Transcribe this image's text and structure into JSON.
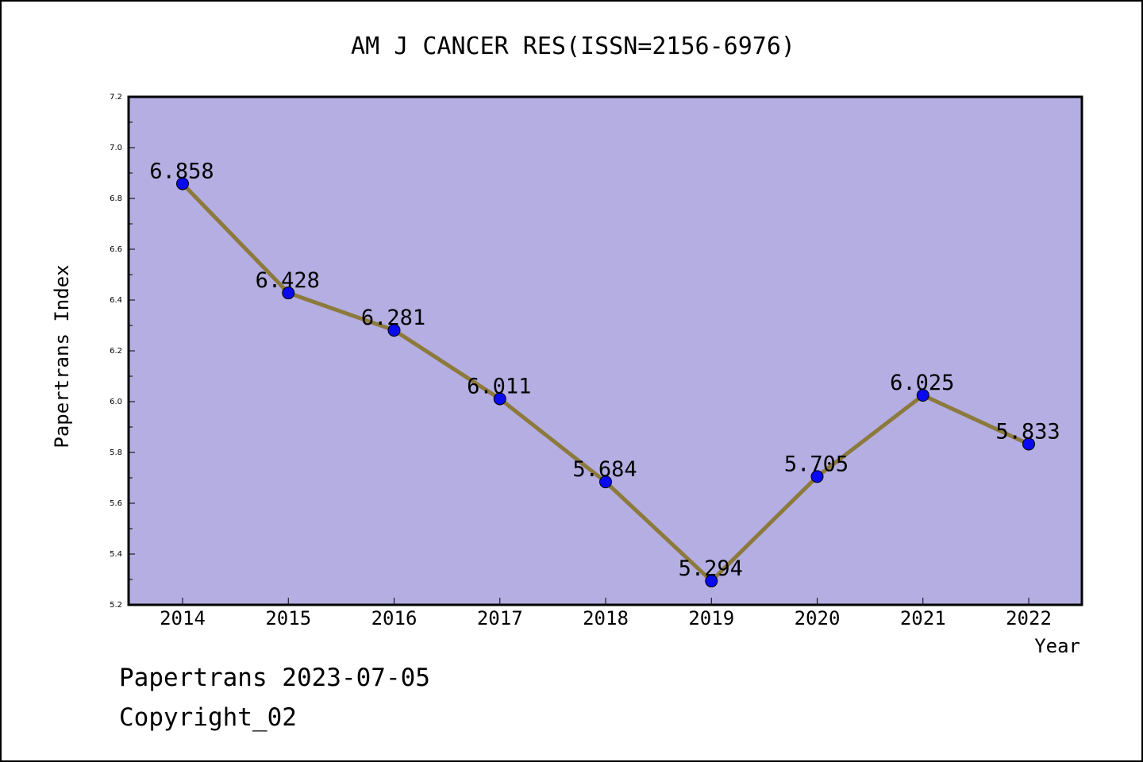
{
  "chart_data": {
    "type": "line",
    "title": "AM J CANCER RES(ISSN=2156-6976)",
    "xlabel": "Year",
    "ylabel": "Papertrans Index",
    "categories": [
      "2014",
      "2015",
      "2016",
      "2017",
      "2018",
      "2019",
      "2020",
      "2021",
      "2022"
    ],
    "series": [
      {
        "values": [
          6.858,
          6.428,
          6.281,
          6.011,
          5.684,
          5.294,
          5.705,
          6.025,
          5.833
        ]
      }
    ],
    "data_labels": [
      "6.858",
      "6.428",
      "6.281",
      "6.011",
      "5.684",
      "5.294",
      "5.705",
      "6.025",
      "5.833"
    ],
    "y_ticks": [
      "5.2",
      "5.4",
      "5.6",
      "5.8",
      "6.0",
      "6.2",
      "6.4",
      "6.6",
      "6.8",
      "7.0",
      "7.2"
    ],
    "ylim": [
      5.2,
      7.2
    ],
    "grid": false,
    "legend": "none",
    "colors": {
      "plot_background": "#b4aee2",
      "line": "#8c7a3c",
      "marker": "#0a0af0"
    }
  },
  "footer": {
    "line1": "Papertrans 2023-07-05",
    "line2": "Copyright_02"
  }
}
